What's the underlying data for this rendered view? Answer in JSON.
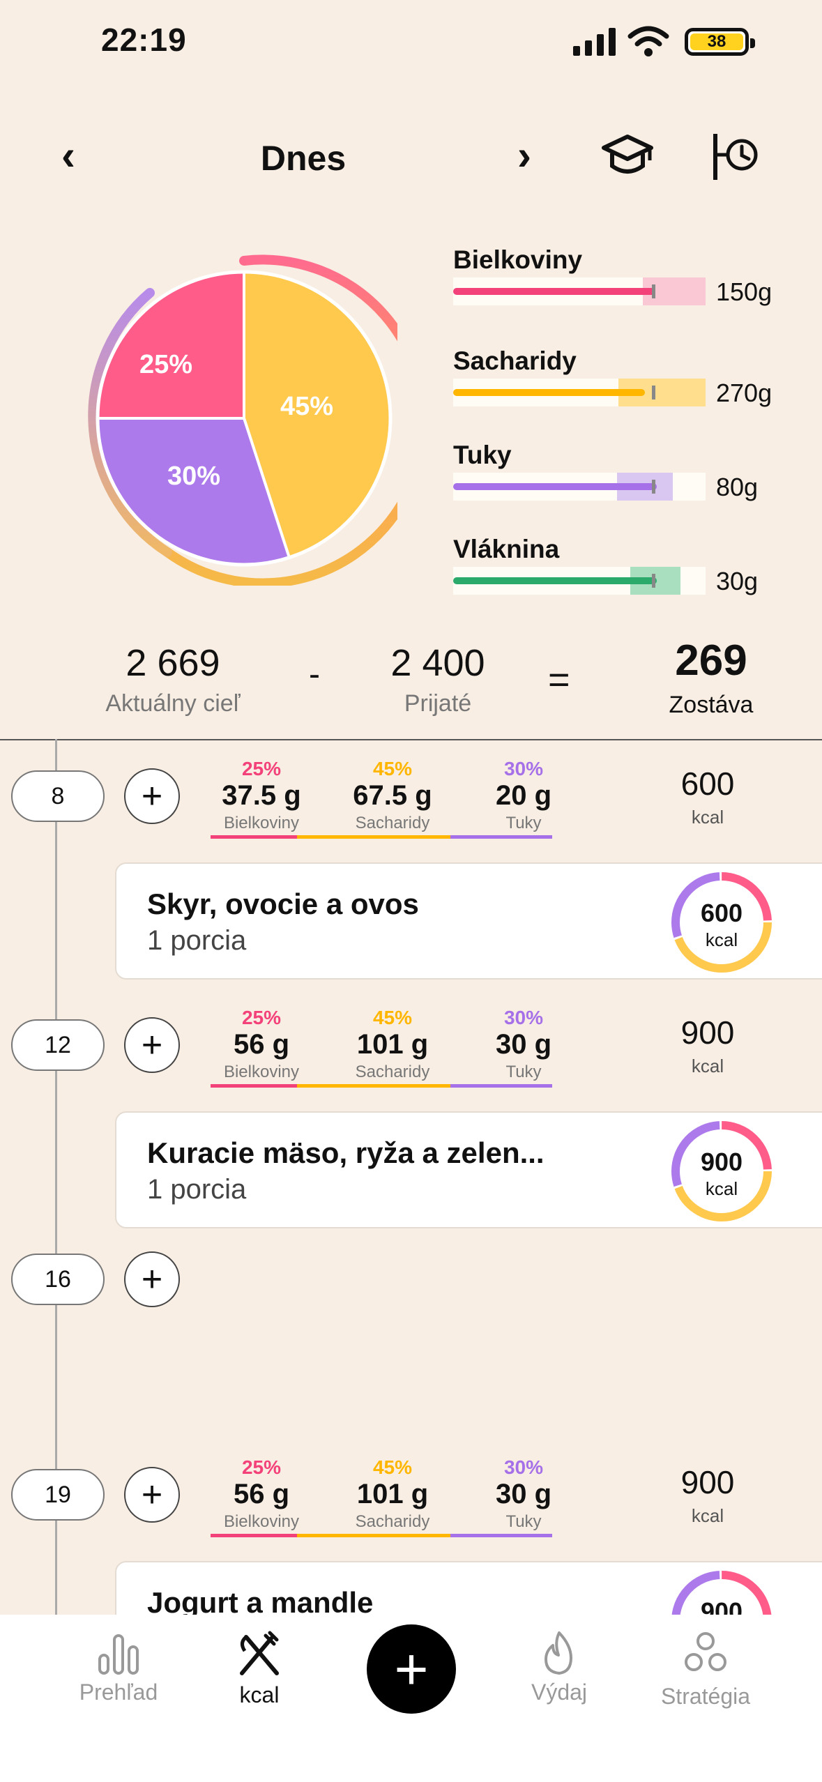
{
  "status": {
    "time": "22:19",
    "battery": "38"
  },
  "header": {
    "title": "Dnes"
  },
  "pie": {
    "slices": [
      {
        "label": "25%",
        "value": 25,
        "color": "#FF5C8A"
      },
      {
        "label": "45%",
        "value": 45,
        "color": "#FFC94D"
      },
      {
        "label": "30%",
        "value": 30,
        "color": "#AC7AEB"
      }
    ]
  },
  "macros": [
    {
      "name": "Bielkoviny",
      "value": "150g",
      "color": "#F3417A",
      "zone": "#FAC8D4"
    },
    {
      "name": "Sacharidy",
      "value": "270g",
      "color": "#FFB600",
      "zone": "#FFDE8E"
    },
    {
      "name": "Tuky",
      "value": "80g",
      "color": "#A671E8",
      "zone": "#D9C6F1"
    },
    {
      "name": "Vláknina",
      "value": "30g",
      "color": "#2BAA6B",
      "zone": "#A9DFBF"
    }
  ],
  "summary": {
    "goal_value": "2 669",
    "goal_label": "Aktuálny cieľ",
    "minus": "-",
    "intake_value": "2 400",
    "intake_label": "Prijaté",
    "equals": "=",
    "remaining_value": "269",
    "remaining_label": "Zostáva"
  },
  "labels": {
    "protein": "Bielkoviny",
    "carbs": "Sacharidy",
    "fat": "Tuky",
    "kcal": "kcal",
    "plus": "+"
  },
  "slots": [
    {
      "time": "8",
      "protein_pct": "25%",
      "protein_g": "37.5 g",
      "carbs_pct": "45%",
      "carbs_g": "67.5 g",
      "fat_pct": "30%",
      "fat_g": "20 g",
      "kcal": "600",
      "meal": {
        "name": "Skyr, ovocie a ovos",
        "portion": "1 porcia",
        "kcal": "600"
      }
    },
    {
      "time": "12",
      "protein_pct": "25%",
      "protein_g": "56 g",
      "carbs_pct": "45%",
      "carbs_g": "101 g",
      "fat_pct": "30%",
      "fat_g": "30 g",
      "kcal": "900",
      "meal": {
        "name": "Kuracie mäso, ryža a zelen...",
        "portion": "1 porcia",
        "kcal": "900"
      }
    },
    {
      "time": "16"
    },
    {
      "time": "19",
      "protein_pct": "25%",
      "protein_g": "56 g",
      "carbs_pct": "45%",
      "carbs_g": "101 g",
      "fat_pct": "30%",
      "fat_g": "30 g",
      "kcal": "900",
      "meal": {
        "name": "Jogurt a mandle",
        "kcal": "900"
      }
    }
  ],
  "tabs": [
    {
      "label": "Prehľad",
      "icon": "bar-chart-icon"
    },
    {
      "label": "kcal",
      "icon": "fork-knife-icon"
    },
    {
      "label": "Výdaj",
      "icon": "flame-icon"
    },
    {
      "label": "Stratégia",
      "icon": "strategy-icon"
    }
  ]
}
